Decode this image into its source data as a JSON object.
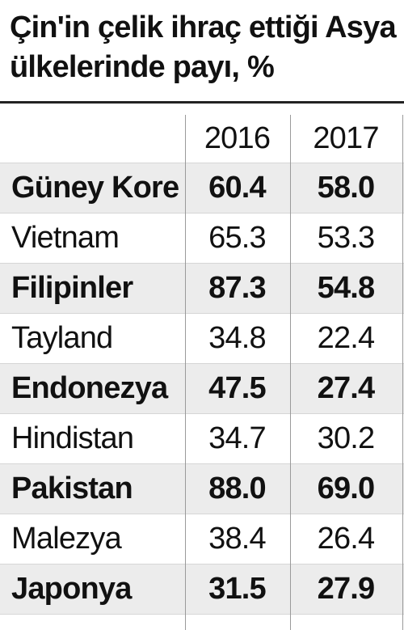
{
  "chart_data": {
    "type": "table",
    "title": "Çin'in çelik ihraç ettiği Asya ülkelerinde payı, %",
    "columns": [
      "2016",
      "2017"
    ],
    "rows": [
      {
        "name": "Güney Kore",
        "values": [
          "60.4",
          "58.0"
        ]
      },
      {
        "name": "Vietnam",
        "values": [
          "65.3",
          "53.3"
        ]
      },
      {
        "name": "Filipinler",
        "values": [
          "87.3",
          "54.8"
        ]
      },
      {
        "name": "Tayland",
        "values": [
          "34.8",
          "22.4"
        ]
      },
      {
        "name": "Endonezya",
        "values": [
          "47.5",
          "27.4"
        ]
      },
      {
        "name": "Hindistan",
        "values": [
          "34.7",
          "30.2"
        ]
      },
      {
        "name": "Pakistan",
        "values": [
          "88.0",
          "69.0"
        ]
      },
      {
        "name": "Malezya",
        "values": [
          "38.4",
          "26.4"
        ]
      },
      {
        "name": "Japonya",
        "values": [
          "31.5",
          "27.9"
        ]
      }
    ]
  },
  "colors": {
    "text": "#111111",
    "shaded_row": "#ececec",
    "rule": "#222222",
    "grid": "#9a9a9a"
  }
}
